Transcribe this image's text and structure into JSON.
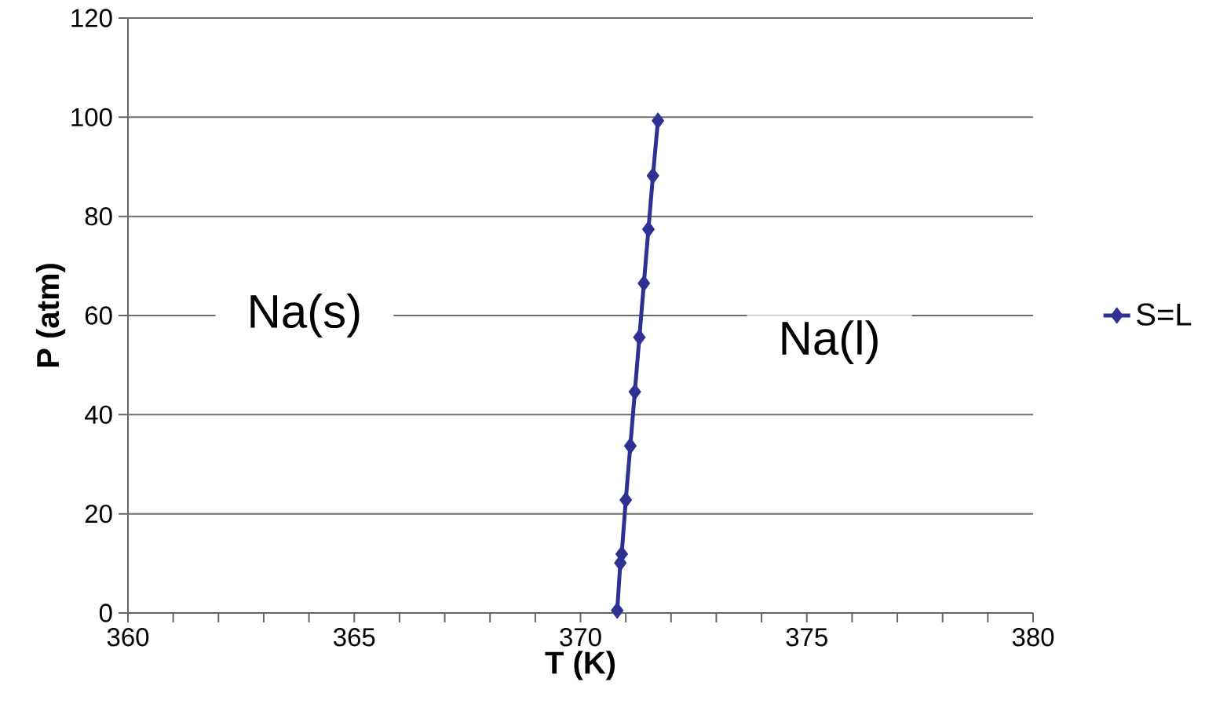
{
  "chart_data": {
    "type": "line",
    "xlabel": "T (K)",
    "ylabel": "P (atm)",
    "x": [
      370.81,
      370.88,
      370.91,
      371.0,
      371.1,
      371.2,
      371.3,
      371.4,
      371.5,
      371.6,
      371.71
    ],
    "series": [
      {
        "name": "S=L",
        "color": "#2e3192",
        "values": [
          0.5,
          10.1,
          11.9,
          22.8,
          33.7,
          44.6,
          55.6,
          66.5,
          77.4,
          88.2,
          99.3
        ]
      }
    ],
    "xlim": [
      360,
      380
    ],
    "xticks": [
      360,
      365,
      370,
      375,
      380
    ],
    "ylim": [
      0,
      120
    ],
    "yticks": [
      0,
      20,
      40,
      60,
      80,
      100,
      120
    ],
    "grid": "y",
    "legend": "right",
    "marker": "diamond",
    "line_style": "solid",
    "annotations": [
      "Na(s)",
      "Na(l)"
    ]
  }
}
